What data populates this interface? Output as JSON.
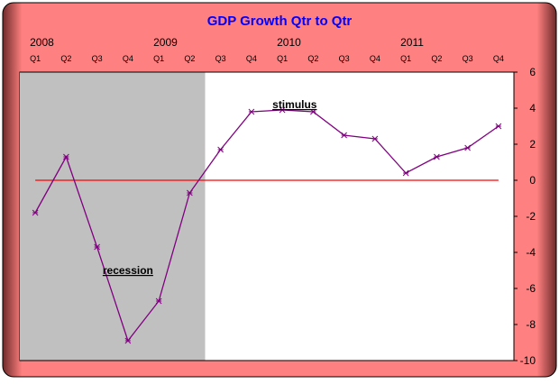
{
  "chart_data": {
    "type": "line",
    "title": "GDP Growth Qtr to Qtr",
    "categories": [
      "Q1",
      "Q2",
      "Q3",
      "Q4",
      "Q1",
      "Q2",
      "Q3",
      "Q4",
      "Q1",
      "Q2",
      "Q3",
      "Q4",
      "Q1",
      "Q2",
      "Q3",
      "Q4"
    ],
    "year_labels": [
      {
        "label": "2008",
        "index": 0
      },
      {
        "label": "2009",
        "index": 4
      },
      {
        "label": "2010",
        "index": 8
      },
      {
        "label": "2011",
        "index": 12
      }
    ],
    "series": [
      {
        "values": [
          -1.8,
          1.3,
          -3.7,
          -8.9,
          -6.7,
          -0.7,
          1.7,
          3.8,
          3.9,
          3.8,
          2.5,
          2.3,
          0.4,
          1.3,
          1.8,
          3.0
        ]
      }
    ],
    "ylim": [
      -10,
      6
    ],
    "yticks": [
      6,
      4,
      2,
      0,
      -2,
      -4,
      -6,
      -8,
      -10
    ],
    "annotations": [
      {
        "text": "recession",
        "x_index": 3.0,
        "y": -5.2
      },
      {
        "text": "stimulus",
        "x_index": 8.4,
        "y": 4.0
      }
    ],
    "shaded_region": {
      "label": "recession",
      "from_index": 0,
      "to_index": 5
    },
    "reference_line": 0,
    "grid": false,
    "legend": "none",
    "colors": {
      "background": "#ff8080",
      "plot_area": "#ffffff",
      "shaded": "#c0c0c0",
      "line": "#800080",
      "zero_line": "#ff0000",
      "title": "#0000ff"
    }
  }
}
